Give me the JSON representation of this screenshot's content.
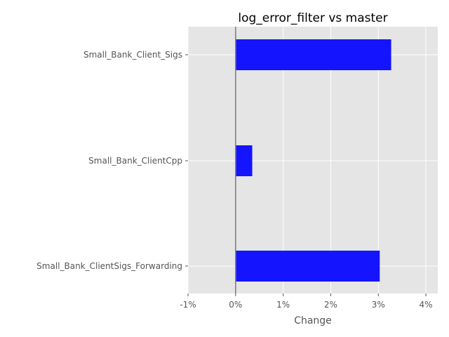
{
  "chart_data": {
    "type": "bar",
    "orientation": "horizontal",
    "title": "log_error_filter vs master",
    "xlabel": "Change",
    "ylabel": "",
    "xlim": [
      -1,
      4.25
    ],
    "x_ticks": [
      -1,
      0,
      1,
      2,
      3,
      4
    ],
    "x_tick_labels": [
      "-1%",
      "0%",
      "1%",
      "2%",
      "3%",
      "4%"
    ],
    "categories": [
      "Small_Bank_Client_Sigs",
      "Small_Bank_ClientCpp",
      "Small_Bank_ClientSigs_Forwarding"
    ],
    "values": [
      3.27,
      0.35,
      3.03
    ],
    "unit": "%",
    "grid": true,
    "zero_line": true,
    "colors": {
      "bar": "#1414ff",
      "plot_background": "#e5e5e5",
      "grid": "#ffffff",
      "zero_line": "#808080"
    }
  }
}
